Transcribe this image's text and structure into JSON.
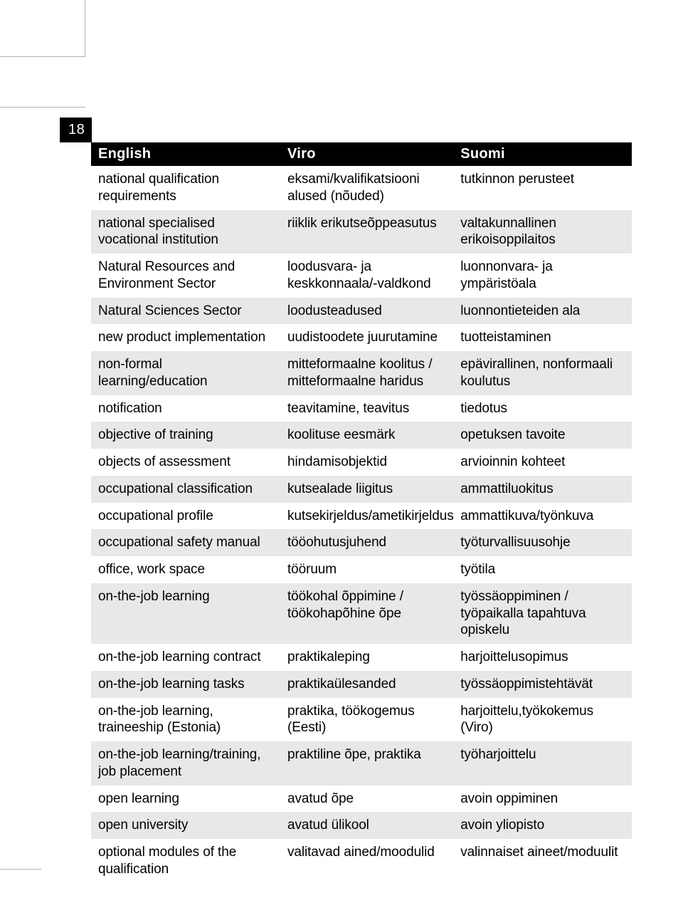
{
  "page_number": "18",
  "table": {
    "headers": {
      "col1": "English",
      "col2": "Viro",
      "col3": "Suomi"
    },
    "columns_width_pct": [
      35,
      32,
      33
    ],
    "header_bg": "#000000",
    "header_fg": "#ffffff",
    "shaded_bg": "#e8e8e8",
    "plain_bg": "#ffffff",
    "text_color": "#000000",
    "font_size_pt": 14,
    "header_font_size_pt": 15,
    "rows": [
      {
        "shade": false,
        "en": "national qualification requirements",
        "viro": "eksami/kvalifikatsiooni alused (nõuded)",
        "suomi": "tutkinnon perusteet"
      },
      {
        "shade": true,
        "en": "national specialised vocational institution",
        "viro": "riiklik erikutseõppeasutus",
        "suomi": "valtakunnallinen erikoisoppilaitos"
      },
      {
        "shade": false,
        "en": "Natural Resources and Environment Sector",
        "viro": "loodusvara- ja keskkonnaala/-valdkond",
        "suomi": "luonnonvara- ja ympäristöala"
      },
      {
        "shade": true,
        "en": "Natural Sciences Sector",
        "viro": "loodusteadused",
        "suomi": "luonnontieteiden ala"
      },
      {
        "shade": false,
        "en": "new product implementation",
        "viro": "uudistoodete juurutamine",
        "suomi": "tuotteistaminen"
      },
      {
        "shade": true,
        "en": "non-formal learning/education",
        "viro": "mitteformaalne koolitus / mitteformaalne haridus",
        "suomi": "epävirallinen, nonformaali koulutus"
      },
      {
        "shade": false,
        "en": "notification",
        "viro": "teavitamine, teavitus",
        "suomi": "tiedotus"
      },
      {
        "shade": true,
        "en": "objective of training",
        "viro": "koolituse eesmärk",
        "suomi": "opetuksen tavoite"
      },
      {
        "shade": false,
        "en": "objects of assessment",
        "viro": "hindamisobjektid",
        "suomi": "arvioinnin kohteet"
      },
      {
        "shade": true,
        "en": "occupational classification",
        "viro": "kutsealade liigitus",
        "suomi": "ammattiluokitus"
      },
      {
        "shade": false,
        "en": "occupational profile",
        "viro": "kutsekirjeldus/ametikirjeldus",
        "suomi": "ammattikuva/työnkuva"
      },
      {
        "shade": true,
        "en": "occupational safety manual",
        "viro": "tööohutusjuhend",
        "suomi": "työturvallisuusohje"
      },
      {
        "shade": false,
        "en": "office, work space",
        "viro": "tööruum",
        "suomi": "työtila"
      },
      {
        "shade": true,
        "en": "on-the-job learning",
        "viro": "töökohal õppimine / töökohapõhine õpe",
        "suomi": "työssäoppiminen / työpaikalla tapahtuva opiskelu"
      },
      {
        "shade": false,
        "en": "on-the-job learning contract",
        "viro": "praktikaleping",
        "suomi": "harjoittelusopimus"
      },
      {
        "shade": true,
        "en": "on-the-job learning tasks",
        "viro": "praktikaülesanded",
        "suomi": "työssäoppimistehtävät"
      },
      {
        "shade": false,
        "en": "on-the-job learning, traineeship (Estonia)",
        "viro": "praktika, töökogemus (Eesti)",
        "suomi": "harjoittelu,työkokemus (Viro)"
      },
      {
        "shade": true,
        "en": "on-the-job learning/training, job placement",
        "viro": "praktiline õpe, praktika",
        "suomi": "työharjoittelu"
      },
      {
        "shade": false,
        "en": "open learning",
        "viro": "avatud õpe",
        "suomi": "avoin oppiminen"
      },
      {
        "shade": true,
        "en": "open university",
        "viro": "avatud ülikool",
        "suomi": "avoin yliopisto"
      },
      {
        "shade": false,
        "en": "optional modules of the qualification",
        "viro": "valitavad ained/moodulid",
        "suomi": "valinnaiset aineet/moduulit"
      }
    ]
  }
}
